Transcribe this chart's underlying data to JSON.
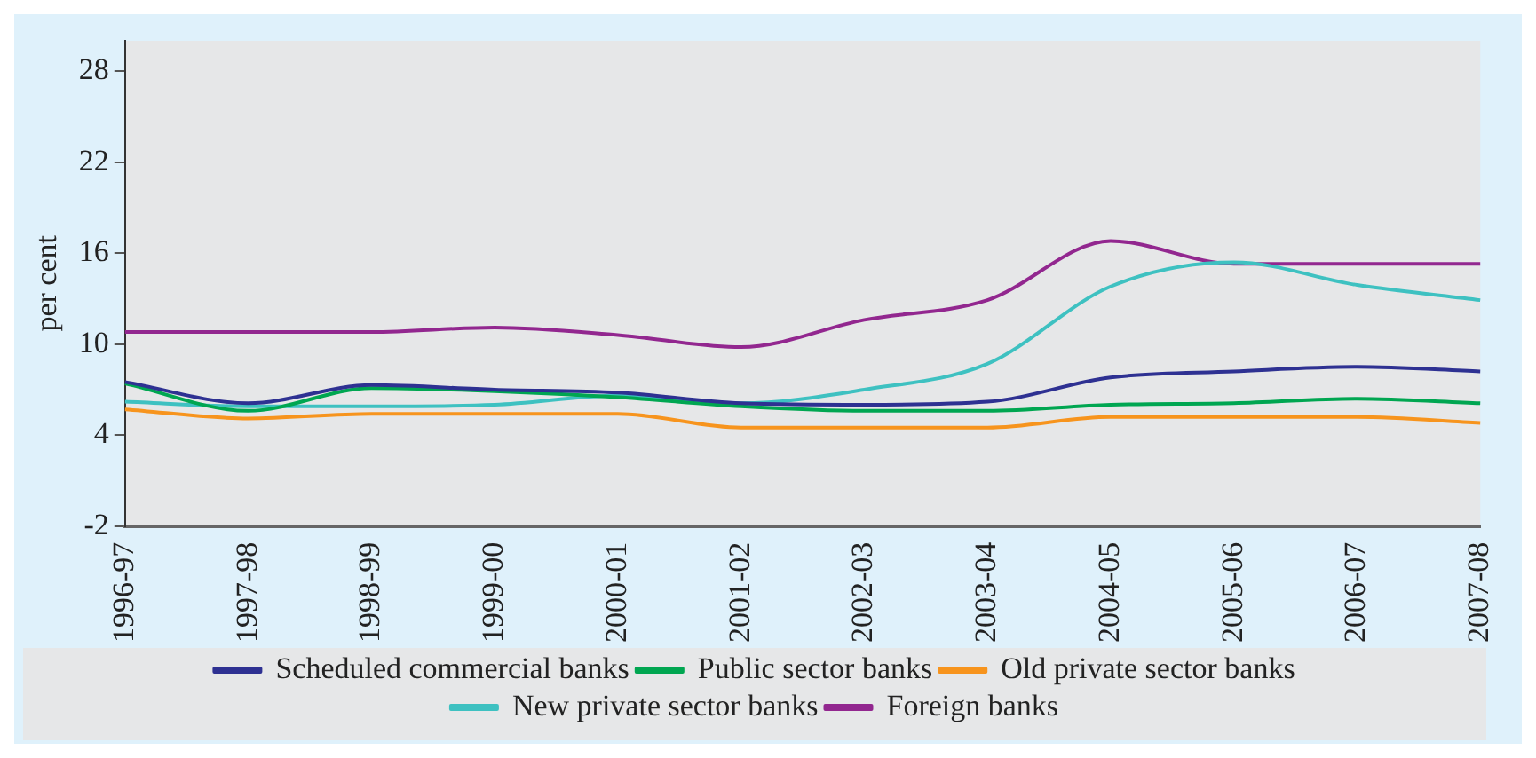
{
  "chart_data": {
    "type": "line",
    "ylabel": "per cent",
    "categories": [
      "1996-97",
      "1997-98",
      "1998-99",
      "1999-00",
      "2000-01",
      "2001-02",
      "2002-03",
      "2003-04",
      "2004-05",
      "2005-06",
      "2006-07",
      "2007-08"
    ],
    "series": [
      {
        "name": "Scheduled commercial banks",
        "color": "#2e3192",
        "values": [
          7.5,
          6.1,
          7.3,
          7.0,
          6.8,
          6.1,
          6.0,
          6.2,
          7.8,
          8.2,
          8.5,
          8.2
        ]
      },
      {
        "name": "Public sector banks",
        "color": "#00a651",
        "values": [
          7.4,
          5.6,
          7.1,
          6.9,
          6.5,
          5.9,
          5.6,
          5.6,
          6.0,
          6.1,
          6.4,
          6.1
        ]
      },
      {
        "name": "Old private sector banks",
        "color": "#f7941d",
        "values": [
          5.7,
          5.1,
          5.4,
          5.4,
          5.4,
          4.5,
          4.5,
          4.5,
          5.2,
          5.2,
          5.2,
          4.8
        ]
      },
      {
        "name": "New private sector banks",
        "color": "#3ec1c1",
        "values": [
          6.2,
          5.9,
          5.9,
          6.0,
          6.6,
          6.1,
          7.0,
          8.7,
          13.8,
          15.4,
          13.9,
          12.9
        ]
      },
      {
        "name": "Foreign banks",
        "color": "#92278f",
        "values": [
          10.8,
          10.8,
          10.8,
          11.1,
          10.6,
          9.8,
          11.6,
          12.9,
          16.8,
          15.3,
          15.3,
          15.3
        ]
      }
    ],
    "ylim": [
      -2,
      30
    ],
    "yticks": [
      -2,
      4,
      10,
      16,
      22,
      28
    ],
    "grid": false,
    "legend": "bottom",
    "marker": "none",
    "line_style": "solid"
  }
}
